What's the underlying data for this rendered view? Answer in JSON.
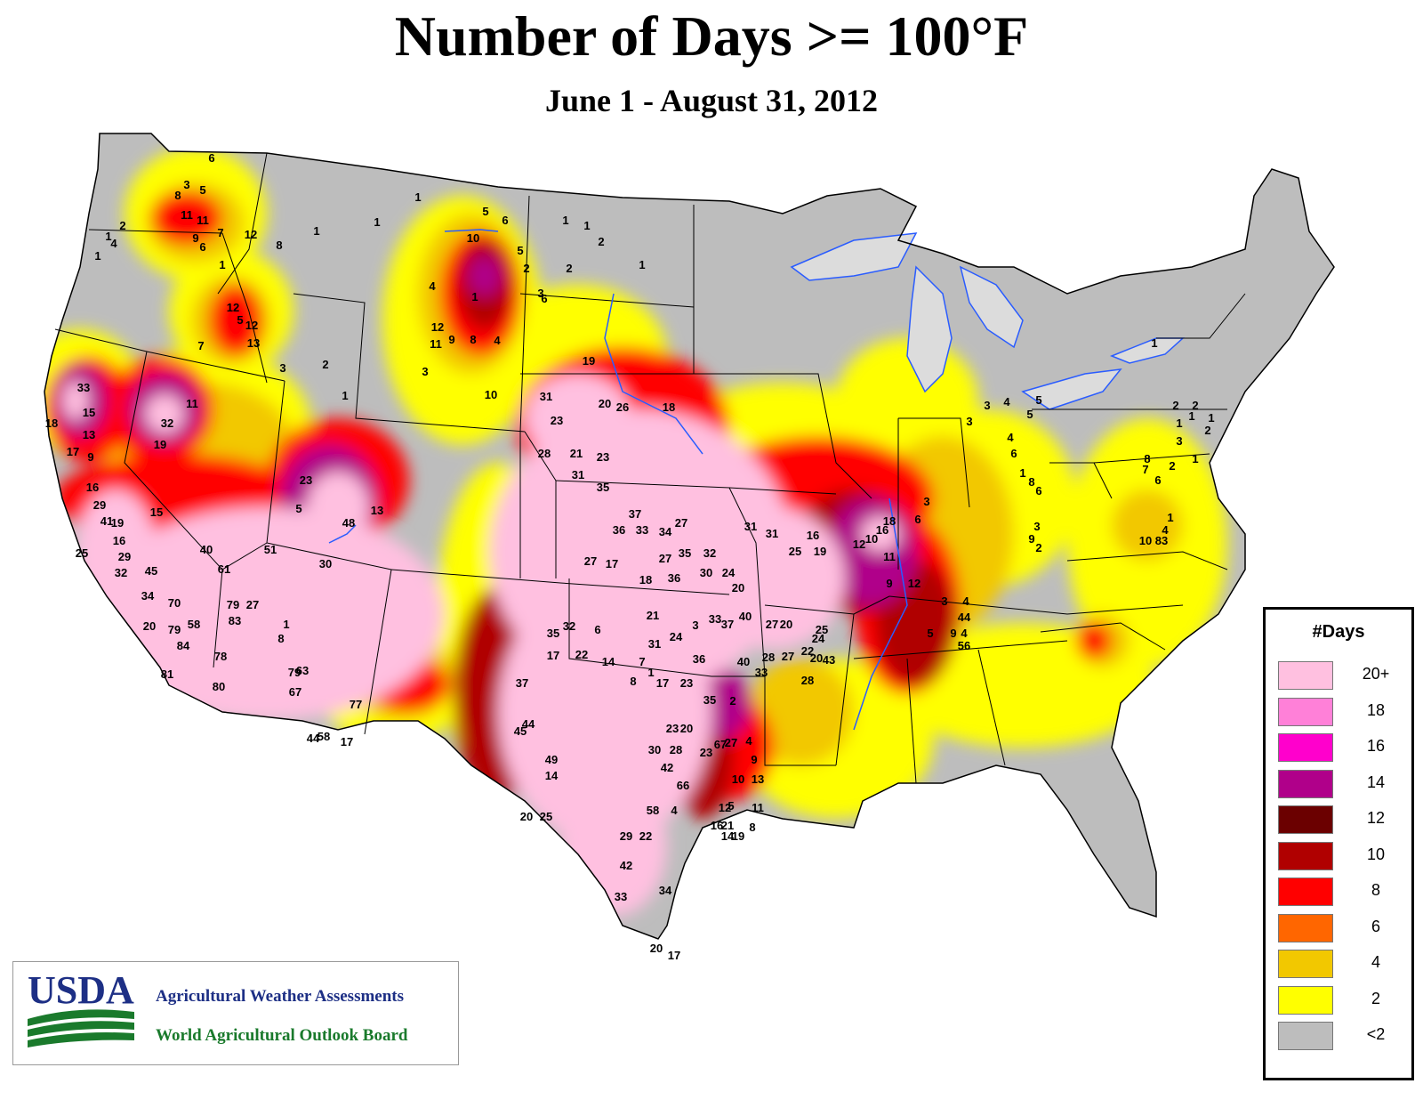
{
  "title": "Number of Days >= 100°F",
  "subtitle": "June 1 - August 31, 2012",
  "legend": {
    "title": "#Days",
    "items": [
      {
        "label": "20+",
        "color": "#ffc0e0"
      },
      {
        "label": "18",
        "color": "#ff80d8"
      },
      {
        "label": "16",
        "color": "#ff00cc"
      },
      {
        "label": "14",
        "color": "#b0008a"
      },
      {
        "label": "12",
        "color": "#6b0000"
      },
      {
        "label": "10",
        "color": "#b00000"
      },
      {
        "label": "8",
        "color": "#ff0000"
      },
      {
        "label": "6",
        "color": "#ff6600"
      },
      {
        "label": "4",
        "color": "#f2c800"
      },
      {
        "label": "2",
        "color": "#ffff00"
      },
      {
        "label": "<2",
        "color": "#bdbdbd"
      }
    ]
  },
  "credits": {
    "logo_text": "USDA",
    "line1": "Agricultural Weather Assessments",
    "line2": "World Agricultural Outlook Board"
  },
  "stations": [
    "6",
    "3",
    "5",
    "8",
    "11",
    "11",
    "9",
    "7",
    "6",
    "12",
    "8",
    "1",
    "1",
    "4",
    "1",
    "2",
    "1",
    "1",
    "1",
    "5",
    "6",
    "10",
    "5",
    "1",
    "2",
    "2",
    "1",
    "1",
    "1",
    "2",
    "6",
    "3",
    "12",
    "5",
    "12",
    "13",
    "7",
    "3",
    "2",
    "4",
    "12",
    "11",
    "4",
    "9",
    "8",
    "10",
    "3",
    "1",
    "33",
    "15",
    "11",
    "32",
    "19",
    "18",
    "13",
    "17",
    "9",
    "16",
    "29",
    "41",
    "19",
    "16",
    "29",
    "25",
    "32",
    "15",
    "40",
    "61",
    "45",
    "34",
    "70",
    "20",
    "79",
    "58",
    "84",
    "78",
    "81",
    "80",
    "23",
    "5",
    "48",
    "13",
    "30",
    "51",
    "79",
    "27",
    "83",
    "1",
    "8",
    "63",
    "79",
    "67",
    "77",
    "44",
    "58",
    "17",
    "19",
    "20",
    "26",
    "18",
    "31",
    "23",
    "28",
    "21",
    "23",
    "31",
    "35",
    "37",
    "36",
    "33",
    "34",
    "27",
    "27",
    "35",
    "32",
    "31",
    "31",
    "16",
    "25",
    "19",
    "27",
    "17",
    "18",
    "36",
    "30",
    "24",
    "20",
    "21",
    "3",
    "33",
    "37",
    "40",
    "27",
    "20",
    "25",
    "31",
    "24",
    "36",
    "40",
    "28",
    "27",
    "20",
    "24",
    "22",
    "43",
    "28",
    "33",
    "23",
    "17",
    "23",
    "20",
    "35",
    "30",
    "28",
    "23",
    "27",
    "67",
    "42",
    "66",
    "58",
    "4",
    "29",
    "22",
    "42",
    "33",
    "34",
    "20",
    "17",
    "35",
    "32",
    "22",
    "17",
    "37",
    "44",
    "45",
    "49",
    "14",
    "25",
    "20",
    "6",
    "14",
    "7",
    "8",
    "1",
    "2",
    "4",
    "9",
    "13",
    "10",
    "5",
    "21",
    "14",
    "19",
    "8",
    "11",
    "16",
    "12",
    "10",
    "16",
    "18",
    "12",
    "11",
    "9",
    "12",
    "3",
    "6",
    "5",
    "9",
    "4",
    "44",
    "56",
    "4",
    "3",
    "3",
    "3",
    "4",
    "5",
    "5",
    "4",
    "6",
    "1",
    "8",
    "6",
    "9",
    "2",
    "3",
    "83",
    "10",
    "4",
    "1",
    "6",
    "2",
    "1",
    "8",
    "7",
    "3",
    "1",
    "1",
    "2",
    "2",
    "1",
    "2",
    "1"
  ]
}
